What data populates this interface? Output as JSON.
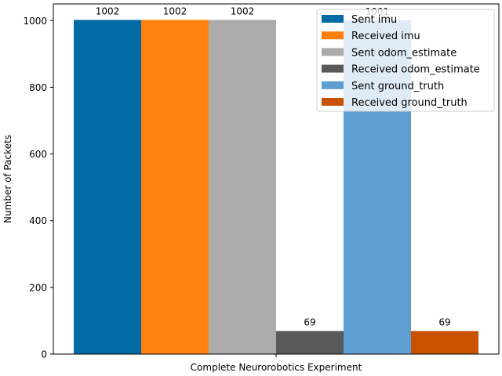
{
  "chart_data": {
    "type": "bar",
    "title": "",
    "xlabel": "",
    "ylabel": "Number of Packets",
    "ylim": [
      0,
      1050
    ],
    "yticks": [
      0,
      200,
      400,
      600,
      800,
      1000
    ],
    "categories": [
      "Complete Neurorobotics Experiment"
    ],
    "grid": false,
    "legend_position": "top-right",
    "series": [
      {
        "name": "Sent imu",
        "values": [
          1002
        ],
        "label": "1002",
        "color": "#006ba4"
      },
      {
        "name": "Received imu",
        "values": [
          1002
        ],
        "label": "1002",
        "color": "#ff800e"
      },
      {
        "name": "Sent odom_estimate",
        "values": [
          1002
        ],
        "label": "1002",
        "color": "#ababab"
      },
      {
        "name": "Received odom_estimate",
        "values": [
          69
        ],
        "label": "69",
        "color": "#595959"
      },
      {
        "name": "Sent ground_truth",
        "values": [
          1001
        ],
        "label": "1001",
        "color": "#5f9ed1"
      },
      {
        "name": "Received ground_truth",
        "values": [
          69
        ],
        "label": "69",
        "color": "#c85200"
      }
    ]
  }
}
